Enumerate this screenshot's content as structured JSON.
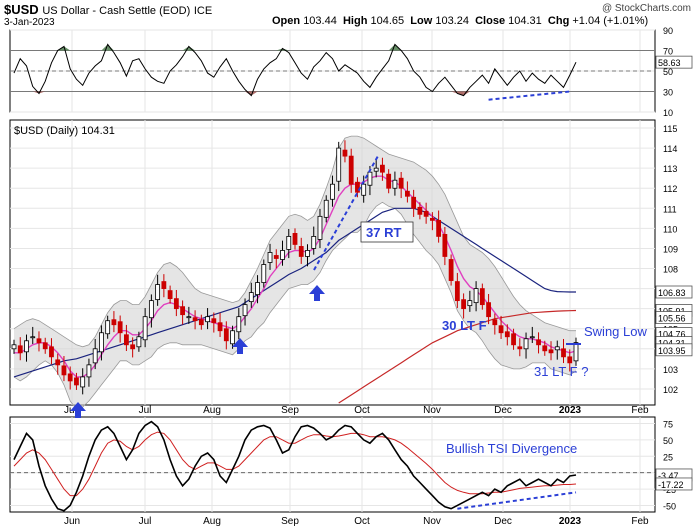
{
  "header": {
    "symbol": "$USD",
    "name": "US Dollar - Cash Settle (EOD)",
    "exchange": "ICE",
    "watermark": "@ StockCharts.com",
    "date": "3-Jan-2023",
    "open_label": "Open",
    "open": "103.44",
    "high_label": "High",
    "high": "104.65",
    "low_label": "Low",
    "low": "103.24",
    "close_label": "Close",
    "close": "104.31",
    "chg_label": "Chg",
    "chg": "+1.04 (+1.01%)"
  },
  "colors": {
    "candle_up": "#000000",
    "candle_down": "#cc0000",
    "ma_fast": "#e040c0",
    "ma_mid": "#1a237e",
    "ma_long": "#c62828",
    "band_fill": "#d3d3d3",
    "annotation": "#2b3fd6",
    "rsi_fill": "#4a7a4a",
    "grid": "#e6e6e6"
  },
  "chart_data": [
    {
      "type": "line",
      "panel": "RSI",
      "ylim": [
        10,
        90
      ],
      "ticks": [
        "90",
        "70",
        "50",
        "30",
        "10"
      ],
      "value_badges": [
        "58.63",
        "50"
      ],
      "series": [
        {
          "values": [
            48,
            62,
            55,
            35,
            28,
            40,
            58,
            70,
            74,
            52,
            42,
            36,
            48,
            55,
            60,
            76,
            68,
            58,
            45,
            60,
            62,
            52,
            44,
            40,
            38,
            50,
            56,
            64,
            74,
            68,
            60,
            48,
            44,
            54,
            62,
            50,
            40,
            32,
            26,
            42,
            52,
            58,
            62,
            72,
            68,
            58,
            48,
            42,
            54,
            60,
            68,
            62,
            50,
            56,
            52,
            48,
            40,
            34,
            44,
            52,
            60,
            76,
            70,
            62,
            50,
            44,
            34,
            30,
            38,
            44,
            36,
            28,
            26,
            34,
            40,
            46,
            38,
            52,
            44,
            36,
            44,
            50,
            40,
            48,
            42,
            38,
            46,
            40,
            34,
            46,
            58.63
          ]
        }
      ]
    },
    {
      "type": "line",
      "panel": "Price",
      "title": "$USD (Daily) 104.31",
      "x_ticks": [
        "Jun",
        "Jul",
        "Aug",
        "Sep",
        "Oct",
        "Nov",
        "Dec",
        "2023",
        "Feb"
      ],
      "ylim": [
        101.2,
        115.4
      ],
      "ticks": [
        "115",
        "114",
        "113",
        "112",
        "111",
        "110",
        "109",
        "108",
        "107",
        "106",
        "105",
        "104",
        "103",
        "102"
      ],
      "value_badges": [
        "106.83",
        "105.91",
        "105.56",
        "104.76",
        "104.31",
        "103.95"
      ],
      "series": [
        {
          "name": "$USD",
          "values": [
            104.2,
            103.8,
            104.4,
            104.6,
            104.3,
            104.0,
            103.6,
            103.2,
            102.7,
            102.4,
            102.2,
            102.6,
            103.2,
            104.0,
            104.8,
            105.4,
            105.2,
            104.8,
            104.2,
            104.0,
            104.6,
            105.6,
            106.4,
            107.2,
            107.0,
            106.5,
            106.0,
            105.7,
            105.6,
            105.4,
            105.2,
            105.6,
            105.3,
            104.9,
            104.4,
            104.9,
            105.6,
            106.2,
            106.8,
            107.3,
            108.2,
            108.8,
            108.5,
            108.9,
            109.6,
            109.2,
            108.6,
            108.9,
            109.6,
            110.6,
            111.4,
            112.2,
            114.0,
            113.6,
            112.2,
            111.8,
            112.2,
            112.8,
            113.0,
            112.8,
            112.0,
            112.4,
            112.0,
            111.6,
            111.0,
            110.7,
            110.6,
            110.4,
            109.6,
            108.6,
            107.4,
            106.4,
            106.0,
            106.4,
            107.0,
            106.2,
            105.6,
            105.2,
            104.8,
            104.6,
            104.2,
            104.0,
            104.5,
            104.6,
            104.2,
            103.9,
            103.8,
            104.1,
            103.6,
            103.3,
            104.31
          ]
        },
        {
          "name": "MA fast",
          "values": [
            103.8,
            103.8,
            104.0,
            104.2,
            104.3,
            104.3,
            104.1,
            103.8,
            103.4,
            102.9,
            102.6,
            102.6,
            102.8,
            103.2,
            103.7,
            104.2,
            104.6,
            104.9,
            104.9,
            104.7,
            104.7,
            105.0,
            105.4,
            105.9,
            106.2,
            106.3,
            106.2,
            106.0,
            105.8,
            105.6,
            105.5,
            105.4,
            105.3,
            105.2,
            105.1,
            105.0,
            105.2,
            105.6,
            106.0,
            106.5,
            107.0,
            107.6,
            108.0,
            108.4,
            108.8,
            108.9,
            108.9,
            108.8,
            109.0,
            109.5,
            110.2,
            110.9,
            111.6,
            112.0,
            112.2,
            112.2,
            112.3,
            112.5,
            112.6,
            112.6,
            112.4,
            112.3,
            112.1,
            111.8,
            111.5,
            111.2,
            110.9,
            110.6,
            110.2,
            109.6,
            108.9,
            108.1,
            107.5,
            107.1,
            106.9,
            106.6,
            106.2,
            105.8,
            105.4,
            105.1,
            104.8,
            104.6,
            104.5,
            104.5,
            104.4,
            104.3,
            104.1,
            104.0,
            103.9,
            103.8,
            103.9
          ]
        },
        {
          "name": "MA 50",
          "values": [
            102.6,
            102.7,
            102.8,
            102.9,
            103.0,
            103.1,
            103.2,
            103.3,
            103.4,
            103.45,
            103.5,
            103.6,
            103.7,
            103.8,
            103.9,
            104.0,
            104.1,
            104.2,
            104.3,
            104.4,
            104.5,
            104.6,
            104.7,
            104.8,
            104.9,
            105.0,
            105.1,
            105.2,
            105.3,
            105.4,
            105.5,
            105.6,
            105.7,
            105.8,
            105.9,
            106.0,
            106.1,
            106.3,
            106.5,
            106.7,
            106.9,
            107.1,
            107.3,
            107.5,
            107.7,
            107.85,
            108.0,
            108.2,
            108.4,
            108.6,
            108.8,
            109.1,
            109.4,
            109.6,
            109.8,
            110.0,
            110.2,
            110.4,
            110.6,
            110.8,
            110.9,
            111.0,
            111.0,
            111.0,
            111.0,
            110.9,
            110.8,
            110.6,
            110.4,
            110.2,
            110.0,
            109.8,
            109.6,
            109.4,
            109.2,
            109.0,
            108.8,
            108.6,
            108.4,
            108.2,
            108.0,
            107.8,
            107.6,
            107.4,
            107.2,
            107.0,
            106.9,
            106.85,
            106.84,
            106.83,
            106.83
          ]
        },
        {
          "name": "MA 200",
          "values": [
            null,
            null,
            null,
            null,
            null,
            null,
            null,
            null,
            null,
            null,
            null,
            null,
            null,
            null,
            null,
            null,
            null,
            null,
            null,
            null,
            null,
            null,
            null,
            null,
            null,
            null,
            null,
            null,
            null,
            null,
            null,
            null,
            null,
            null,
            null,
            null,
            null,
            null,
            null,
            null,
            null,
            null,
            null,
            null,
            null,
            null,
            null,
            null,
            null,
            null,
            null,
            null,
            101.3,
            101.5,
            101.7,
            101.9,
            102.1,
            102.3,
            102.5,
            102.7,
            102.9,
            103.1,
            103.3,
            103.5,
            103.7,
            103.9,
            104.1,
            104.3,
            104.45,
            104.6,
            104.75,
            104.9,
            105.0,
            105.1,
            105.2,
            105.3,
            105.4,
            105.5,
            105.55,
            105.6,
            105.65,
            105.7,
            105.75,
            105.8,
            105.82,
            105.84,
            105.86,
            105.88,
            105.89,
            105.9,
            105.91
          ]
        },
        {
          "name": "BB upper",
          "values": [
            105.0,
            105.2,
            105.4,
            105.5,
            105.4,
            105.2,
            105.0,
            104.8,
            104.6,
            104.4,
            104.2,
            104.1,
            104.2,
            104.6,
            105.2,
            105.8,
            106.2,
            106.4,
            106.4,
            106.2,
            106.2,
            106.6,
            107.2,
            107.8,
            108.2,
            108.3,
            108.1,
            107.8,
            107.4,
            107.0,
            106.8,
            106.7,
            106.6,
            106.5,
            106.4,
            106.3,
            106.4,
            106.8,
            107.4,
            108.0,
            108.7,
            109.4,
            109.8,
            110.2,
            110.6,
            110.7,
            110.6,
            110.4,
            110.6,
            111.2,
            112.0,
            112.9,
            114.0,
            114.5,
            114.6,
            114.6,
            114.5,
            114.3,
            114.1,
            113.9,
            113.7,
            113.6,
            113.5,
            113.4,
            113.3,
            113.1,
            112.9,
            112.6,
            112.2,
            111.7,
            111.0,
            110.3,
            109.6,
            109.2,
            109.0,
            108.8,
            108.5,
            108.1,
            107.6,
            107.1,
            106.6,
            106.2,
            105.9,
            105.7,
            105.5,
            105.3,
            105.2,
            105.1,
            105.0,
            104.9,
            104.9
          ]
        },
        {
          "name": "BB lower",
          "values": [
            102.6,
            102.4,
            102.6,
            102.9,
            103.2,
            103.4,
            103.2,
            102.8,
            102.2,
            101.4,
            101.0,
            101.1,
            101.4,
            101.8,
            102.2,
            102.6,
            103.0,
            103.4,
            103.4,
            103.2,
            103.2,
            103.4,
            103.6,
            104.0,
            104.2,
            104.3,
            104.3,
            104.2,
            104.2,
            104.2,
            104.2,
            104.1,
            104.0,
            103.9,
            103.8,
            103.7,
            104.0,
            104.4,
            104.6,
            105.0,
            105.3,
            105.8,
            106.2,
            106.6,
            107.0,
            107.1,
            107.2,
            107.2,
            107.4,
            107.8,
            108.4,
            108.9,
            109.2,
            109.5,
            109.8,
            109.8,
            110.1,
            110.7,
            111.1,
            111.3,
            111.1,
            111.0,
            110.7,
            110.2,
            109.7,
            109.3,
            108.9,
            108.6,
            108.2,
            107.5,
            106.8,
            105.9,
            105.4,
            105.0,
            104.8,
            104.4,
            103.9,
            103.5,
            103.2,
            103.1,
            103.0,
            103.0,
            103.1,
            103.3,
            103.3,
            103.3,
            103.0,
            102.9,
            102.8,
            102.7,
            102.9
          ]
        }
      ]
    },
    {
      "type": "line",
      "panel": "TSI",
      "x_ticks": [
        "Jun",
        "Jul",
        "Aug",
        "Sep",
        "Oct",
        "Nov",
        "Dec",
        "2023",
        "Feb"
      ],
      "ylim": [
        -60,
        85
      ],
      "ticks": [
        "75",
        "50",
        "25",
        "0",
        "-25",
        "-50"
      ],
      "value_badges": [
        "-3.47",
        "-17.22"
      ],
      "series": [
        {
          "name": "TSI",
          "values": [
            20,
            40,
            60,
            50,
            10,
            -20,
            -40,
            -55,
            -58,
            -50,
            -30,
            -5,
            25,
            50,
            65,
            70,
            60,
            40,
            20,
            35,
            60,
            72,
            78,
            70,
            50,
            20,
            -5,
            -20,
            -10,
            10,
            25,
            30,
            20,
            -5,
            -15,
            5,
            25,
            50,
            65,
            70,
            72,
            68,
            50,
            30,
            35,
            55,
            70,
            72,
            68,
            60,
            50,
            55,
            65,
            72,
            70,
            60,
            50,
            45,
            55,
            60,
            50,
            35,
            20,
            10,
            -5,
            -15,
            -25,
            -35,
            -45,
            -52,
            -55,
            -50,
            -45,
            -40,
            -35,
            -30,
            -35,
            -25,
            -30,
            -20,
            -15,
            -10,
            -20,
            -15,
            -10,
            -15,
            -20,
            -10,
            -15,
            -5,
            -3.47
          ]
        },
        {
          "name": "Signal",
          "values": [
            10,
            20,
            30,
            35,
            30,
            20,
            5,
            -10,
            -25,
            -35,
            -35,
            -25,
            -10,
            10,
            30,
            45,
            50,
            48,
            40,
            35,
            40,
            50,
            58,
            62,
            60,
            50,
            35,
            20,
            10,
            5,
            10,
            15,
            15,
            10,
            5,
            5,
            10,
            20,
            30,
            40,
            50,
            55,
            55,
            50,
            45,
            45,
            50,
            55,
            58,
            58,
            56,
            55,
            56,
            58,
            60,
            60,
            58,
            55,
            55,
            55,
            53,
            50,
            45,
            38,
            30,
            22,
            14,
            5,
            -5,
            -15,
            -22,
            -27,
            -30,
            -32,
            -32,
            -32,
            -31,
            -30,
            -30,
            -28,
            -26,
            -24,
            -23,
            -22,
            -21,
            -20,
            -20,
            -19,
            -18,
            -18,
            -17.22
          ]
        }
      ]
    }
  ],
  "annotations": {
    "rt_37": "37 RT",
    "lt_f_30": "30 LT F",
    "lt_f_31": "31 LT F ?",
    "swing_low": "Swing Low",
    "tsi_divergence": "Bullish TSI Divergence"
  }
}
